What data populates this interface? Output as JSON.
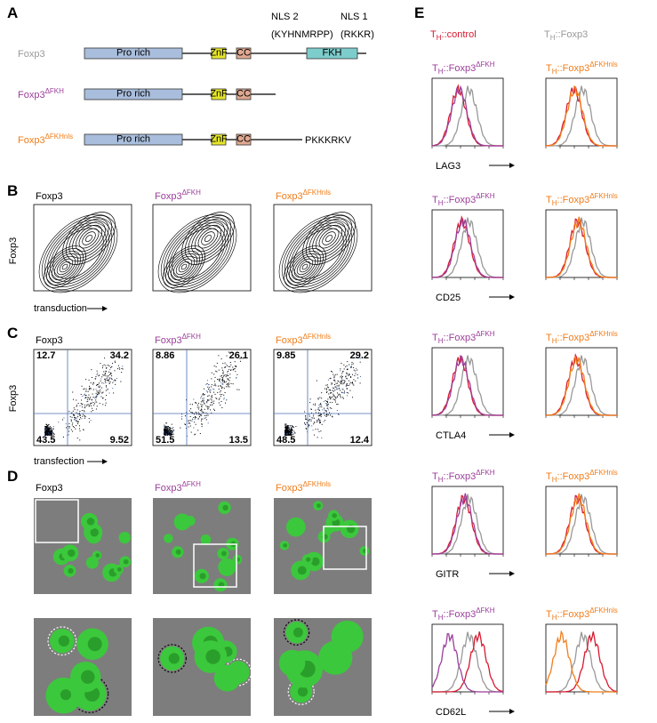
{
  "panel_A": {
    "letter": "A",
    "nls2": "NLS 2",
    "nls1": "NLS 1",
    "nls2_seq": "(KYHNMRPP)",
    "nls1_seq": "(RKKR)",
    "constructs": [
      {
        "name": {
          "base": "Foxp3"
        },
        "domains": [
          "Pro rich",
          "ZnF",
          "CC",
          "FKH"
        ]
      },
      {
        "name": {
          "base": "Foxp3",
          "sup": "ΔFKH"
        },
        "domains": [
          "Pro rich",
          "ZnF",
          "CC"
        ]
      },
      {
        "name": {
          "base": "Foxp3",
          "sup": "ΔFKHnls"
        },
        "domains": [
          "Pro rich",
          "ZnF",
          "CC"
        ],
        "tail": "PKKKRKV"
      }
    ]
  },
  "panel_B": {
    "letter": "B",
    "samples": [
      {
        "base": "Foxp3"
      },
      {
        "base": "Foxp3",
        "sup": "ΔFKH"
      },
      {
        "base": "Foxp3",
        "sup": "ΔFKHnls"
      }
    ],
    "y_label": "Foxp3",
    "x_label": "transduction"
  },
  "panel_C": {
    "letter": "C",
    "y_label": "Foxp3",
    "x_label": "transfection",
    "samples": [
      {
        "name": {
          "base": "Foxp3"
        },
        "upper_left": 12.7,
        "upper_right": 34.2,
        "lower_left": 43.5,
        "lower_right": 9.52
      },
      {
        "name": {
          "base": "Foxp3",
          "sup": "ΔFKH"
        },
        "upper_left": 8.86,
        "upper_right": 26.1,
        "lower_left": 51.5,
        "lower_right": 13.5
      },
      {
        "name": {
          "base": "Foxp3",
          "sup": "ΔFKHnls"
        },
        "upper_left": 9.85,
        "upper_right": 29.2,
        "lower_left": 48.5,
        "lower_right": 12.4
      }
    ]
  },
  "panel_D": {
    "letter": "D",
    "samples": [
      {
        "base": "Foxp3"
      },
      {
        "base": "Foxp3",
        "sup": "ΔFKH"
      },
      {
        "base": "Foxp3",
        "sup": "ΔFKHnls"
      }
    ]
  },
  "panel_E": {
    "letter": "E",
    "legend": [
      {
        "base": "T",
        "sub": "H",
        "rest": "::control"
      },
      {
        "base": "T",
        "sub": "H",
        "rest": "::Foxp3"
      }
    ],
    "rows": [
      {
        "headers": [
          {
            "base": "T",
            "sub": "H",
            "rest": "::Foxp3",
            "sup": "ΔFKH"
          },
          {
            "base": "T",
            "sub": "H",
            "rest": "::Foxp3",
            "sup": "ΔFKHnls"
          }
        ],
        "marker": "LAG3"
      },
      {
        "headers": [
          {
            "base": "T",
            "sub": "H",
            "rest": "::Foxp3",
            "sup": "ΔFKH"
          },
          {
            "base": "T",
            "sub": "H",
            "rest": "::Foxp3",
            "sup": "ΔFKHnls"
          }
        ],
        "marker": "CD25"
      },
      {
        "headers": [
          {
            "base": "T",
            "sub": "H",
            "rest": "::Foxp3",
            "sup": "ΔFKH"
          },
          {
            "base": "T",
            "sub": "H",
            "rest": "::Foxp3",
            "sup": "ΔFKHnls"
          }
        ],
        "marker": "CTLA4"
      },
      {
        "headers": [
          {
            "base": "T",
            "sub": "H",
            "rest": "::Foxp3",
            "sup": "ΔFKH"
          },
          {
            "base": "T",
            "sub": "H",
            "rest": "::Foxp3",
            "sup": "ΔFKHnls"
          }
        ],
        "marker": "GITR"
      },
      {
        "headers": [
          {
            "base": "T",
            "sub": "H",
            "rest": "::Foxp3",
            "sup": "ΔFKH"
          },
          {
            "base": "T",
            "sub": "H",
            "rest": "::Foxp3",
            "sup": "ΔFKHnls"
          }
        ],
        "marker": "CD62L"
      }
    ]
  }
}
